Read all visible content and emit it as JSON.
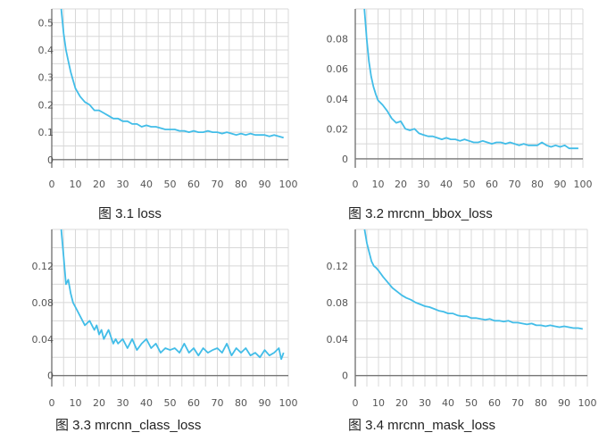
{
  "figure": {
    "language": "zh",
    "type": "training-loss-curves"
  },
  "style": {
    "line_color": "#42bde8",
    "grid_color": "#d8d8d8",
    "axis_color": "#777777"
  },
  "chart_data": [
    {
      "type": "line",
      "caption": "图 3.1 loss",
      "xlabel": "",
      "ylabel": "",
      "xlim": [
        0,
        100
      ],
      "ylim": [
        -0.03,
        0.55
      ],
      "xticks": [
        0,
        10,
        20,
        30,
        40,
        50,
        60,
        70,
        80,
        90,
        100
      ],
      "yticks": [
        0,
        0.1,
        0.2,
        0.3,
        0.4,
        0.5
      ],
      "ytick_labels": [
        "0",
        "0.1",
        "0.2",
        "0.3",
        "0.4",
        "0.5"
      ],
      "series": [
        {
          "name": "loss",
          "x": [
            4,
            5,
            6,
            7,
            8,
            9,
            10,
            12,
            14,
            16,
            18,
            20,
            22,
            24,
            26,
            28,
            30,
            32,
            34,
            36,
            38,
            40,
            42,
            44,
            46,
            48,
            50,
            52,
            54,
            56,
            58,
            60,
            62,
            64,
            66,
            68,
            70,
            72,
            74,
            76,
            78,
            80,
            82,
            84,
            86,
            88,
            90,
            92,
            94,
            96,
            98
          ],
          "y": [
            0.55,
            0.46,
            0.4,
            0.36,
            0.32,
            0.29,
            0.26,
            0.23,
            0.21,
            0.2,
            0.18,
            0.18,
            0.17,
            0.16,
            0.15,
            0.15,
            0.14,
            0.14,
            0.13,
            0.13,
            0.12,
            0.125,
            0.12,
            0.12,
            0.115,
            0.11,
            0.11,
            0.11,
            0.105,
            0.105,
            0.1,
            0.105,
            0.1,
            0.1,
            0.105,
            0.1,
            0.1,
            0.095,
            0.1,
            0.095,
            0.09,
            0.095,
            0.09,
            0.095,
            0.09,
            0.09,
            0.09,
            0.085,
            0.09,
            0.085,
            0.08
          ]
        }
      ]
    },
    {
      "type": "line",
      "caption": "图 3.2 mrcnn_bbox_loss",
      "xlabel": "",
      "ylabel": "",
      "xlim": [
        0,
        100
      ],
      "ylim": [
        -0.006,
        0.1
      ],
      "xticks": [
        0,
        10,
        20,
        30,
        40,
        50,
        60,
        70,
        80,
        90,
        100
      ],
      "yticks": [
        0,
        0.02,
        0.04,
        0.06,
        0.08
      ],
      "ytick_labels": [
        "0",
        "0.02",
        "0.04",
        "0.06",
        "0.08"
      ],
      "series": [
        {
          "name": "mrcnn_bbox_loss",
          "x": [
            4,
            5,
            6,
            7,
            8,
            9,
            10,
            12,
            14,
            16,
            18,
            20,
            22,
            24,
            26,
            28,
            30,
            32,
            34,
            36,
            38,
            40,
            42,
            44,
            46,
            48,
            50,
            52,
            54,
            56,
            58,
            60,
            62,
            64,
            66,
            68,
            70,
            72,
            74,
            76,
            78,
            80,
            82,
            84,
            86,
            88,
            90,
            92,
            94,
            96,
            98
          ],
          "y": [
            0.1,
            0.08,
            0.065,
            0.055,
            0.048,
            0.043,
            0.039,
            0.036,
            0.032,
            0.027,
            0.024,
            0.025,
            0.02,
            0.019,
            0.02,
            0.017,
            0.016,
            0.015,
            0.015,
            0.014,
            0.013,
            0.014,
            0.013,
            0.013,
            0.012,
            0.013,
            0.012,
            0.011,
            0.011,
            0.012,
            0.011,
            0.01,
            0.011,
            0.011,
            0.01,
            0.011,
            0.01,
            0.009,
            0.01,
            0.009,
            0.009,
            0.009,
            0.011,
            0.009,
            0.008,
            0.009,
            0.008,
            0.009,
            0.007,
            0.007,
            0.007
          ]
        }
      ]
    },
    {
      "type": "line",
      "caption": "图 3.3 mrcnn_class_loss",
      "xlabel": "",
      "ylabel": "",
      "xlim": [
        0,
        100
      ],
      "ylim": [
        -0.012,
        0.16
      ],
      "xticks": [
        0,
        10,
        20,
        30,
        40,
        50,
        60,
        70,
        80,
        90,
        100
      ],
      "yticks": [
        0,
        0.04,
        0.08,
        0.12
      ],
      "ytick_labels": [
        "0",
        "0.04",
        "0.08",
        "0.12"
      ],
      "series": [
        {
          "name": "mrcnn_class_loss",
          "x": [
            4,
            5,
            6,
            7,
            8,
            9,
            10,
            12,
            14,
            16,
            18,
            19,
            20,
            21,
            22,
            24,
            26,
            27,
            28,
            30,
            32,
            34,
            36,
            38,
            40,
            42,
            44,
            46,
            48,
            50,
            52,
            54,
            56,
            58,
            60,
            62,
            64,
            66,
            68,
            70,
            72,
            74,
            76,
            78,
            80,
            82,
            84,
            86,
            88,
            90,
            92,
            94,
            96,
            97,
            98
          ],
          "y": [
            0.16,
            0.13,
            0.1,
            0.105,
            0.09,
            0.08,
            0.075,
            0.065,
            0.055,
            0.06,
            0.05,
            0.055,
            0.045,
            0.05,
            0.04,
            0.05,
            0.035,
            0.04,
            0.035,
            0.04,
            0.03,
            0.04,
            0.028,
            0.035,
            0.04,
            0.03,
            0.035,
            0.025,
            0.03,
            0.028,
            0.03,
            0.025,
            0.035,
            0.025,
            0.03,
            0.022,
            0.03,
            0.025,
            0.028,
            0.03,
            0.025,
            0.035,
            0.022,
            0.03,
            0.025,
            0.03,
            0.022,
            0.025,
            0.02,
            0.028,
            0.022,
            0.025,
            0.03,
            0.018,
            0.025
          ]
        }
      ]
    },
    {
      "type": "line",
      "caption": "图 3.4 mrcnn_mask_loss",
      "xlabel": "",
      "ylabel": "",
      "xlim": [
        0,
        100
      ],
      "ylim": [
        -0.012,
        0.16
      ],
      "xticks": [
        0,
        10,
        20,
        30,
        40,
        50,
        60,
        70,
        80,
        90,
        100
      ],
      "yticks": [
        0,
        0.04,
        0.08,
        0.12
      ],
      "ytick_labels": [
        "0",
        "0.04",
        "0.08",
        "0.12"
      ],
      "series": [
        {
          "name": "mrcnn_mask_loss",
          "x": [
            4,
            5,
            6,
            7,
            8,
            9,
            10,
            12,
            14,
            16,
            18,
            20,
            22,
            24,
            26,
            28,
            30,
            32,
            34,
            36,
            38,
            40,
            42,
            44,
            46,
            48,
            50,
            52,
            54,
            56,
            58,
            60,
            62,
            64,
            66,
            68,
            70,
            72,
            74,
            76,
            78,
            80,
            82,
            84,
            86,
            88,
            90,
            92,
            94,
            96,
            98
          ],
          "y": [
            0.16,
            0.145,
            0.135,
            0.125,
            0.12,
            0.118,
            0.115,
            0.108,
            0.102,
            0.096,
            0.092,
            0.088,
            0.085,
            0.083,
            0.08,
            0.078,
            0.076,
            0.075,
            0.073,
            0.071,
            0.07,
            0.068,
            0.068,
            0.066,
            0.065,
            0.065,
            0.063,
            0.063,
            0.062,
            0.061,
            0.062,
            0.06,
            0.06,
            0.059,
            0.06,
            0.058,
            0.058,
            0.057,
            0.056,
            0.057,
            0.055,
            0.055,
            0.054,
            0.055,
            0.054,
            0.053,
            0.054,
            0.053,
            0.052,
            0.052,
            0.051
          ]
        }
      ]
    }
  ]
}
